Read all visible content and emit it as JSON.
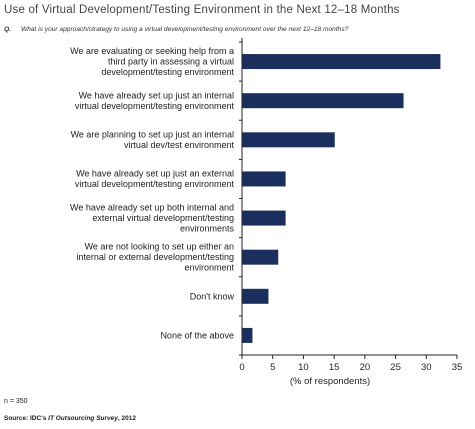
{
  "title": "Use of Virtual Development/Testing Environment in the Next 12–18 Months",
  "question": {
    "prefix": "Q.",
    "text": "What is your approach/strategy to using a virtual development/testing environment over the next 12–18 months?"
  },
  "chart_data": {
    "type": "bar",
    "orientation": "horizontal",
    "categories": [
      [
        "We are evaluating or seeking help from a",
        "third party in assessing a virtual",
        "development/testing environment"
      ],
      [
        "We have already set up just an internal",
        "virtual development/testing environment"
      ],
      [
        "We are planning to set up just an internal",
        "virtual dev/test environment"
      ],
      [
        "We have already set up just an external",
        "virtual development/testing environment"
      ],
      [
        "We have already set up both internal and",
        "external virtual development/testing",
        "environments"
      ],
      [
        "We are not looking to set up either an",
        "internal or external development/testing",
        "environment"
      ],
      [
        "Don't know"
      ],
      [
        "None of the above"
      ]
    ],
    "values": [
      32.3,
      26.3,
      15.1,
      7.1,
      7.1,
      5.9,
      4.3,
      1.7
    ],
    "xlabel": "(% of respondents)",
    "xlim": [
      0,
      35
    ],
    "xticks": [
      0,
      5,
      10,
      15,
      20,
      25,
      30,
      35
    ],
    "bar_color": "#1b2f5e",
    "grid": false
  },
  "footer": {
    "n": "n = 350",
    "source_prefix": "Source: IDC's ",
    "source_italic": "IT Outsourcing Survey",
    "source_suffix": ", 2012"
  }
}
